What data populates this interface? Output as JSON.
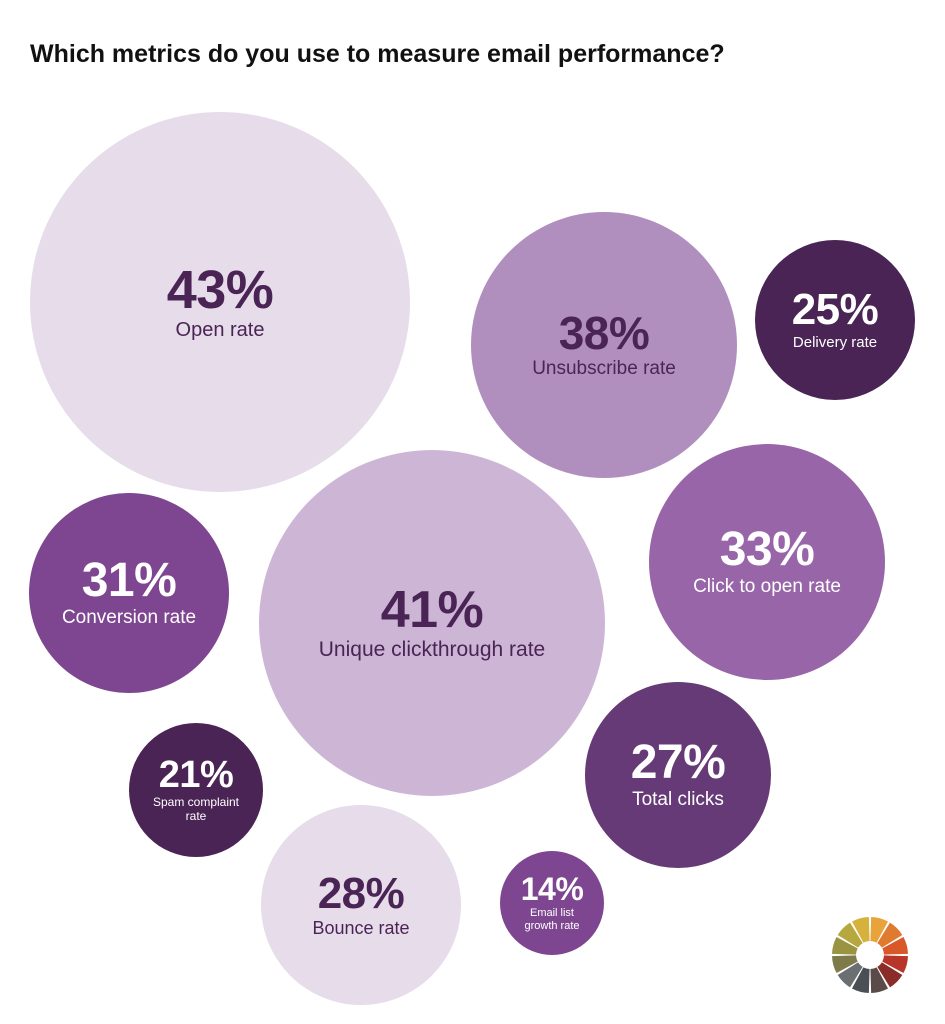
{
  "chart_data": {
    "type": "bubble",
    "title": "Which metrics do you use to measure email performance?",
    "categories": [
      "Open rate",
      "Unsubscribe rate",
      "Delivery rate",
      "Click to open rate",
      "Conversion rate",
      "Unique clickthrough rate",
      "Spam complaint rate",
      "Total clicks",
      "Bounce rate",
      "Email list growth rate"
    ],
    "values": [
      43,
      38,
      25,
      33,
      31,
      41,
      21,
      27,
      28,
      14
    ],
    "value_labels": [
      "43%",
      "38%",
      "25%",
      "33%",
      "31%",
      "41%",
      "21%",
      "27%",
      "28%",
      "14%"
    ],
    "colors": [
      "#e6dcea",
      "#b08fbf",
      "#4a2455",
      "#9866a8",
      "#7e4690",
      "#cdb5d6",
      "#4a2455",
      "#663a76",
      "#e6dcea",
      "#7e4690"
    ]
  }
}
